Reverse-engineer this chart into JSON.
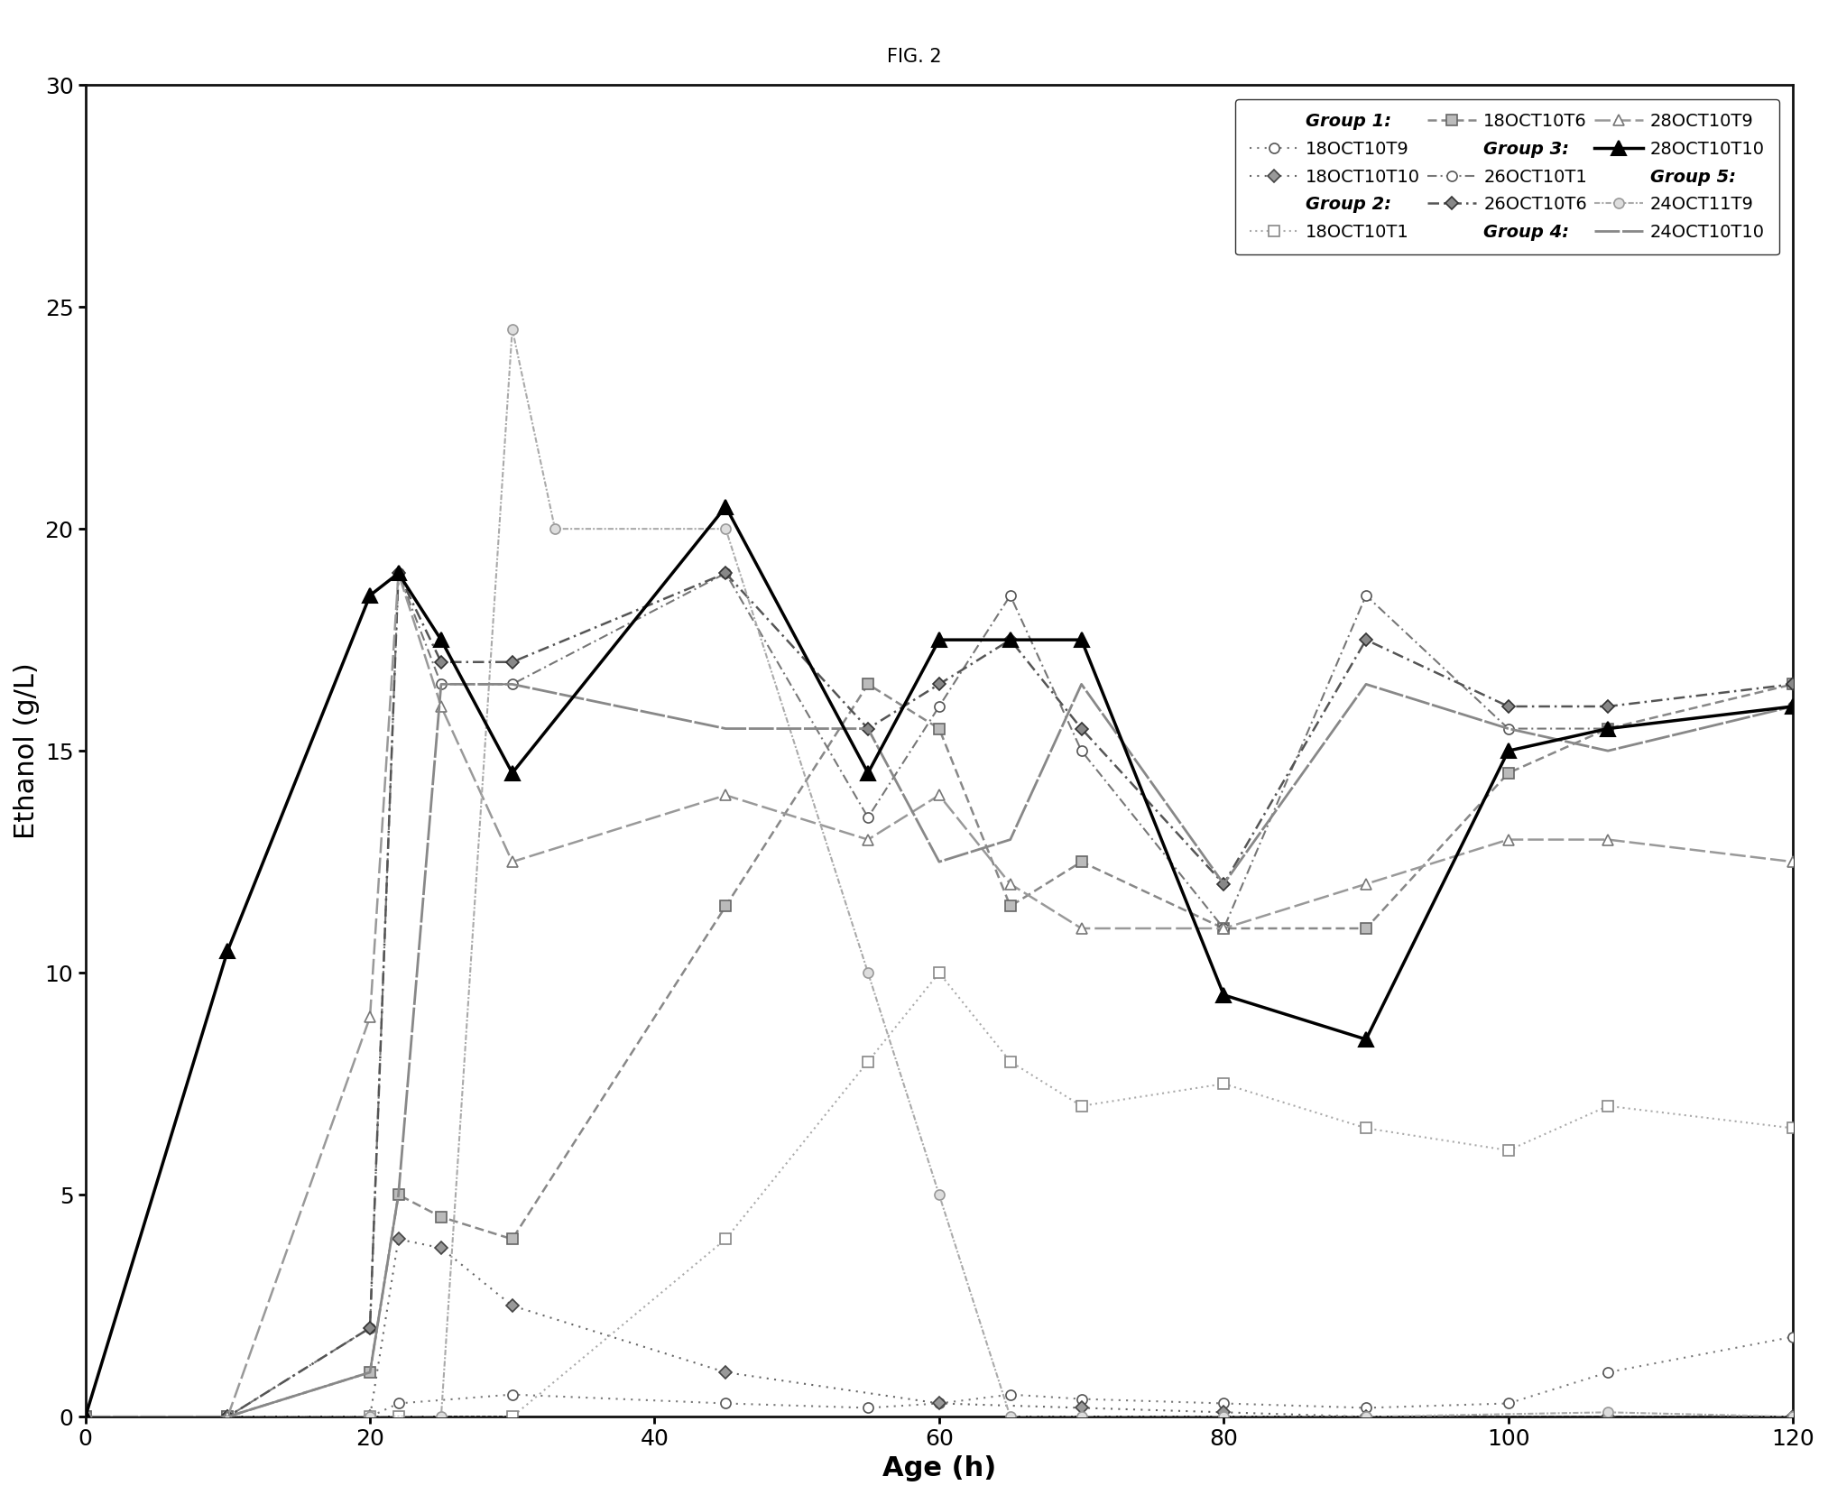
{
  "title": "FIG. 2",
  "xlabel": "Age (h)",
  "ylabel": "Ethanol (g/L)",
  "xlim": [
    0,
    120
  ],
  "ylim": [
    0,
    30
  ],
  "xticks": [
    0,
    20,
    40,
    60,
    80,
    100,
    120
  ],
  "yticks": [
    0,
    5,
    10,
    15,
    20,
    25,
    30
  ],
  "series": [
    {
      "label": "18OCT10T9",
      "x": [
        0,
        10,
        20,
        22,
        30,
        45,
        55,
        60,
        65,
        70,
        80,
        90,
        100,
        107,
        120
      ],
      "y": [
        0,
        0,
        0,
        0.3,
        0.5,
        0.3,
        0.2,
        0.3,
        0.5,
        0.4,
        0.3,
        0.2,
        0.3,
        1.0,
        1.8
      ]
    },
    {
      "label": "18OCT10T10",
      "x": [
        0,
        10,
        20,
        22,
        25,
        30,
        45,
        60,
        70,
        80,
        90,
        107,
        120
      ],
      "y": [
        0,
        0,
        0,
        4.0,
        3.8,
        2.5,
        1.0,
        0.3,
        0.2,
        0.1,
        0.0,
        0.0,
        0.0
      ]
    },
    {
      "label": "18OCT10T1",
      "x": [
        0,
        10,
        20,
        22,
        30,
        45,
        55,
        60,
        65,
        70,
        80,
        90,
        100,
        107,
        120
      ],
      "y": [
        0,
        0,
        0,
        0,
        0,
        4.0,
        8.0,
        10.0,
        8.0,
        7.0,
        7.5,
        6.5,
        6.0,
        7.0,
        6.5
      ]
    },
    {
      "label": "18OCT10T6",
      "x": [
        0,
        10,
        20,
        22,
        25,
        30,
        45,
        55,
        60,
        65,
        70,
        80,
        90,
        100,
        107,
        120
      ],
      "y": [
        0,
        0,
        1.0,
        5.0,
        4.5,
        4.0,
        11.5,
        16.5,
        15.5,
        11.5,
        12.5,
        11.0,
        11.0,
        14.5,
        15.5,
        16.5
      ]
    },
    {
      "label": "26OCT10T1",
      "x": [
        0,
        10,
        20,
        22,
        25,
        30,
        45,
        55,
        60,
        65,
        70,
        80,
        90,
        100,
        107,
        120
      ],
      "y": [
        0,
        0,
        2.0,
        19.0,
        16.5,
        16.5,
        19.0,
        13.5,
        16.0,
        18.5,
        15.0,
        11.0,
        18.5,
        15.5,
        15.5,
        16.0
      ]
    },
    {
      "label": "26OCT10T6",
      "x": [
        0,
        10,
        20,
        22,
        25,
        30,
        45,
        55,
        60,
        65,
        70,
        80,
        90,
        100,
        107,
        120
      ],
      "y": [
        0,
        0,
        2.0,
        19.0,
        17.0,
        17.0,
        19.0,
        15.5,
        16.5,
        17.5,
        15.5,
        12.0,
        17.5,
        16.0,
        16.0,
        16.5
      ]
    },
    {
      "label": "28OCT10T9",
      "x": [
        0,
        10,
        20,
        22,
        25,
        30,
        45,
        55,
        60,
        65,
        70,
        80,
        90,
        100,
        107,
        120
      ],
      "y": [
        0,
        0,
        9.0,
        19.0,
        16.0,
        12.5,
        14.0,
        13.0,
        14.0,
        12.0,
        11.0,
        11.0,
        12.0,
        13.0,
        13.0,
        12.5
      ]
    },
    {
      "label": "28OCT10T10",
      "x": [
        0,
        10,
        20,
        22,
        25,
        30,
        45,
        55,
        60,
        65,
        70,
        80,
        90,
        100,
        107,
        120
      ],
      "y": [
        0,
        10.5,
        18.5,
        19.0,
        17.5,
        14.5,
        20.5,
        14.5,
        17.5,
        17.5,
        17.5,
        9.5,
        8.5,
        15.0,
        15.5,
        16.0
      ]
    },
    {
      "label": "24OCT11T9",
      "x": [
        0,
        20,
        25,
        30,
        33,
        45,
        55,
        60,
        65,
        70,
        80,
        90,
        107,
        120
      ],
      "y": [
        0,
        0,
        0,
        24.5,
        20.0,
        20.0,
        10.0,
        5.0,
        0.0,
        0.0,
        0.0,
        0.0,
        0.1,
        0.0
      ]
    },
    {
      "label": "24OCT10T10",
      "x": [
        0,
        10,
        20,
        22,
        25,
        30,
        45,
        55,
        60,
        65,
        70,
        80,
        90,
        100,
        107,
        120
      ],
      "y": [
        0,
        0,
        1.0,
        5.0,
        16.5,
        16.5,
        15.5,
        15.5,
        12.5,
        13.0,
        16.5,
        12.0,
        16.5,
        15.5,
        15.0,
        16.0
      ]
    }
  ],
  "group_labels": [
    "Group 1:",
    "Group 2:",
    "Group 3:",
    "Group 4:",
    "Group 5:"
  ],
  "left_series": [
    "18OCT10T9",
    "18OCT10T1",
    "26OCT10T1",
    "28OCT10T9",
    "24OCT11T9"
  ],
  "right_series": [
    "18OCT10T10",
    "18OCT10T6",
    "26OCT10T6",
    "28OCT10T10",
    "24OCT10T10"
  ],
  "background_color": "#ffffff",
  "title_fontsize": 15,
  "axis_label_fontsize": 22,
  "tick_fontsize": 18,
  "legend_fontsize": 14
}
